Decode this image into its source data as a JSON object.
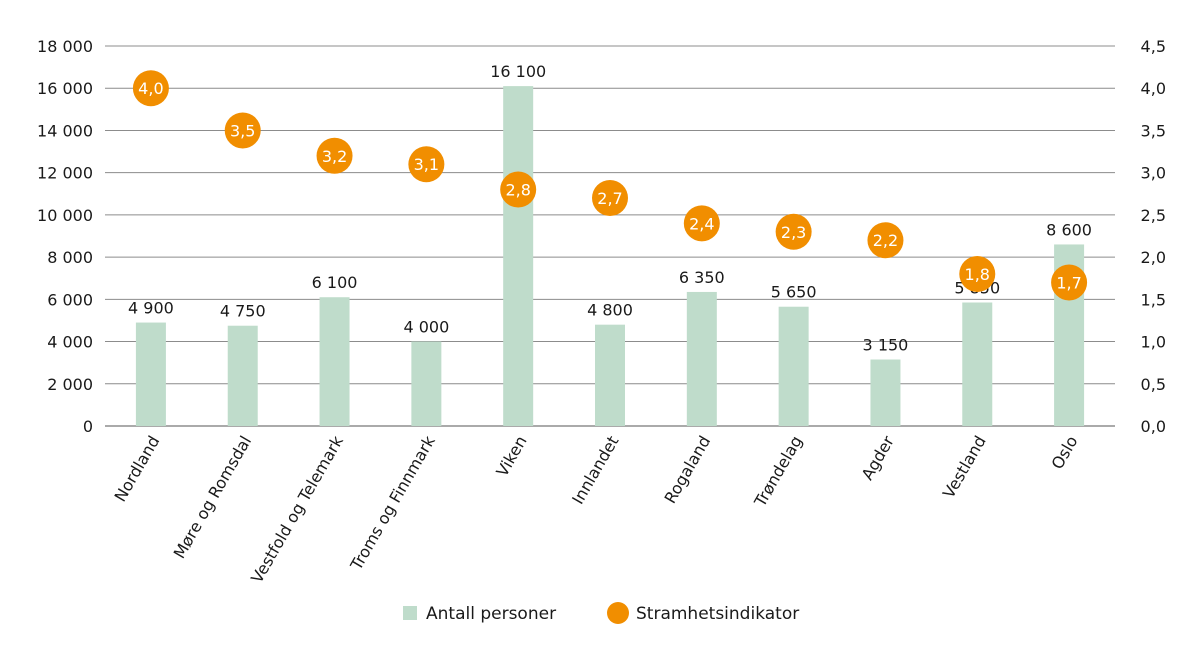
{
  "chart_data": {
    "type": "bar",
    "categories": [
      "Nordland",
      "Møre og Romsdal",
      "Vestfold og Telemark",
      "Troms og Finnmark",
      "Viken",
      "Innlandet",
      "Rogaland",
      "Trøndelag",
      "Agder",
      "Vestland",
      "Oslo"
    ],
    "series": [
      {
        "name": "Antall personer",
        "type": "bar",
        "axis": "left",
        "color": "#bfdccb",
        "values": [
          4900,
          4750,
          6100,
          4000,
          16100,
          4800,
          6350,
          5650,
          3150,
          5850,
          8600
        ],
        "labels": [
          "4 900",
          "4 750",
          "6 100",
          "4 000",
          "16 100",
          "4 800",
          "6 350",
          "5 650",
          "3 150",
          "5 850",
          "8 600"
        ]
      },
      {
        "name": "Stramhetsindikator",
        "type": "scatter",
        "axis": "right",
        "color": "#f18e00",
        "values": [
          4.0,
          3.5,
          3.2,
          3.1,
          2.8,
          2.7,
          2.4,
          2.3,
          2.2,
          1.8,
          1.7
        ],
        "labels": [
          "4,0",
          "3,5",
          "3,2",
          "3,1",
          "2,8",
          "2,7",
          "2,4",
          "2,3",
          "2,2",
          "1,8",
          "1,7"
        ]
      }
    ],
    "ylim": [
      0,
      18000
    ],
    "y2lim": [
      0,
      4.5
    ],
    "yticks": [
      "0",
      "2 000",
      "4 000",
      "6 000",
      "8 000",
      "10 000",
      "12 000",
      "14 000",
      "16 000",
      "18 000"
    ],
    "y2ticks": [
      "0,0",
      "0,5",
      "1,0",
      "1,5",
      "2,0",
      "2,5",
      "3,0",
      "3,5",
      "4,0",
      "4,5"
    ],
    "grid": true,
    "legend": "bottom-center"
  }
}
